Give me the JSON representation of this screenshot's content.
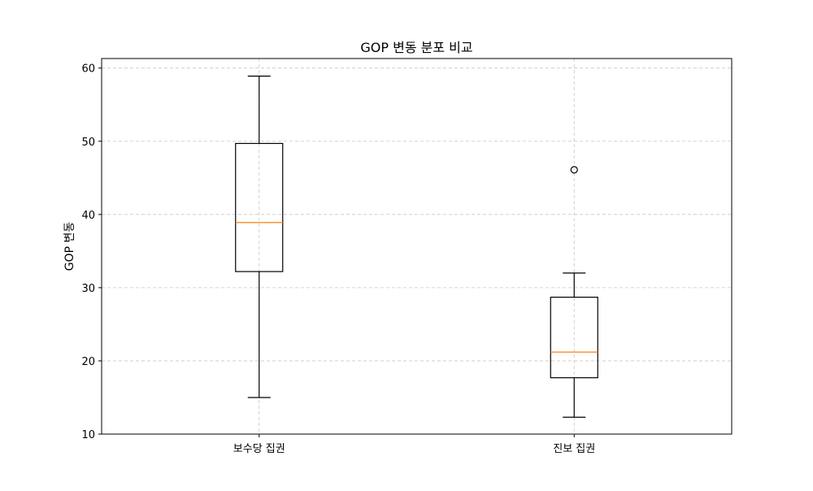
{
  "chart_data": {
    "type": "box",
    "title": "GOP 변동 분포 비교",
    "xlabel": "",
    "ylabel": "GOP 변동",
    "ylim": [
      10,
      61.3
    ],
    "yticks": [
      10,
      20,
      30,
      40,
      50,
      60
    ],
    "grid": true,
    "categories": [
      "보수당 집권",
      "진보 집권"
    ],
    "boxes": [
      {
        "category": "보수당 집권",
        "whisker_low": 15.0,
        "q1": 32.2,
        "median": 38.9,
        "q3": 49.7,
        "whisker_high": 58.9,
        "outliers": []
      },
      {
        "category": "진보 집권",
        "whisker_low": 12.3,
        "q1": 17.7,
        "median": 21.2,
        "q3": 28.7,
        "whisker_high": 32.0,
        "outliers": [
          46.1
        ]
      }
    ],
    "colors": {
      "box": "#000000",
      "median": "#ff7f0e",
      "grid": "#b0b0b0"
    }
  }
}
